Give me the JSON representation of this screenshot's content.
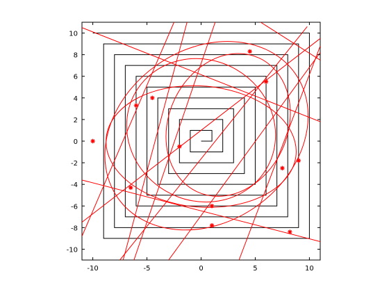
{
  "chart_data": {
    "type": "line",
    "title": "",
    "xlabel": "",
    "ylabel": "",
    "xlim": [
      -11,
      11
    ],
    "ylim": [
      -11,
      11
    ],
    "grid": false,
    "legend": "none",
    "x_ticks": [
      -10,
      -5,
      0,
      5,
      10
    ],
    "y_ticks": [
      -10,
      -8,
      -6,
      -4,
      -2,
      0,
      2,
      4,
      6,
      8,
      10
    ],
    "colors": {
      "spiral": "#000000",
      "curves": "#ff0000",
      "axes": "#000000"
    },
    "series": [
      {
        "kind": "square-spiral",
        "color": "#000000",
        "points": [
          [
            0,
            0
          ],
          [
            1,
            0
          ],
          [
            1,
            1
          ],
          [
            -1,
            1
          ],
          [
            -1,
            -1
          ],
          [
            2,
            -1
          ],
          [
            2,
            2
          ],
          [
            -2,
            2
          ],
          [
            -2,
            -2
          ],
          [
            3,
            -2
          ],
          [
            3,
            3
          ],
          [
            -3,
            3
          ],
          [
            -3,
            -3
          ],
          [
            4,
            -3
          ],
          [
            4,
            4
          ],
          [
            -4,
            4
          ],
          [
            -4,
            -4
          ],
          [
            5,
            -4
          ],
          [
            5,
            5
          ],
          [
            -5,
            5
          ],
          [
            -5,
            -5
          ],
          [
            6,
            -5
          ],
          [
            6,
            6
          ],
          [
            -6,
            6
          ],
          [
            -6,
            -6
          ],
          [
            7,
            -6
          ],
          [
            7,
            7
          ],
          [
            -7,
            7
          ],
          [
            -7,
            -7
          ],
          [
            8,
            -7
          ],
          [
            8,
            8
          ],
          [
            -8,
            8
          ],
          [
            -8,
            -8
          ],
          [
            9,
            -8
          ],
          [
            9,
            9
          ],
          [
            -9,
            9
          ],
          [
            -9,
            -9
          ],
          [
            10,
            -9
          ],
          [
            10,
            10
          ],
          [
            -10,
            10
          ]
        ]
      },
      {
        "kind": "ellipse",
        "color": "#ff0000",
        "center": [
          0.5,
          0.5
        ],
        "rx": 10.0,
        "ry": 8.0,
        "angle_deg": 35
      },
      {
        "kind": "ellipse",
        "color": "#ff0000",
        "center": [
          0.0,
          1.0
        ],
        "rx": 7.0,
        "ry": 6.5,
        "angle_deg": -30
      },
      {
        "kind": "ellipse",
        "color": "#ff0000",
        "center": [
          2.5,
          1.5
        ],
        "rx": 6.8,
        "ry": 5.5,
        "angle_deg": 65
      },
      {
        "kind": "ellipse",
        "color": "#ff0000",
        "center": [
          0.0,
          -0.5
        ],
        "rx": 8.8,
        "ry": 5.6,
        "angle_deg": -5
      },
      {
        "kind": "line",
        "color": "#ff0000",
        "from": [
          -11,
          10.5
        ],
        "to": [
          11,
          1.8
        ]
      },
      {
        "kind": "line",
        "color": "#ff0000",
        "from": [
          -11,
          -3.6
        ],
        "to": [
          11,
          -9.3
        ]
      },
      {
        "kind": "line",
        "color": "#ff0000",
        "from": [
          -11,
          -7.5
        ],
        "to": [
          11,
          9.5
        ]
      },
      {
        "kind": "line",
        "color": "#ff0000",
        "from": [
          -7.5,
          -11
        ],
        "to": [
          9.8,
          10.6
        ]
      },
      {
        "kind": "line",
        "color": "#ff0000",
        "from": [
          -3.0,
          -11
        ],
        "to": [
          11,
          8.2
        ]
      },
      {
        "kind": "line",
        "color": "#ff0000",
        "from": [
          -2.5,
          11
        ],
        "to": [
          -11,
          -8.8
        ]
      },
      {
        "kind": "line",
        "color": "#ff0000",
        "from": [
          -7.2,
          -11
        ],
        "to": [
          -1.3,
          11
        ]
      },
      {
        "kind": "line",
        "color": "#ff0000",
        "from": [
          -6.2,
          -11
        ],
        "to": [
          1.3,
          11
        ]
      },
      {
        "kind": "line",
        "color": "#ff0000",
        "from": [
          5.5,
          11
        ],
        "to": [
          11,
          7.5
        ]
      },
      {
        "kind": "line",
        "color": "#ff0000",
        "from": [
          3.5,
          -11
        ],
        "to": [
          11,
          8.8
        ]
      },
      {
        "kind": "markers",
        "marker": "*",
        "color": "#ff0000",
        "points": [
          [
            -10,
            0
          ],
          [
            -6,
            3.3
          ],
          [
            -4.5,
            4
          ],
          [
            4.5,
            8.3
          ],
          [
            6,
            5.5
          ],
          [
            -2,
            -0.5
          ],
          [
            -6.5,
            -4.3
          ],
          [
            1,
            -6
          ],
          [
            1,
            -7.8
          ],
          [
            7.5,
            -2.5
          ],
          [
            9,
            -1.8
          ],
          [
            8.2,
            -8.4
          ]
        ]
      }
    ]
  }
}
